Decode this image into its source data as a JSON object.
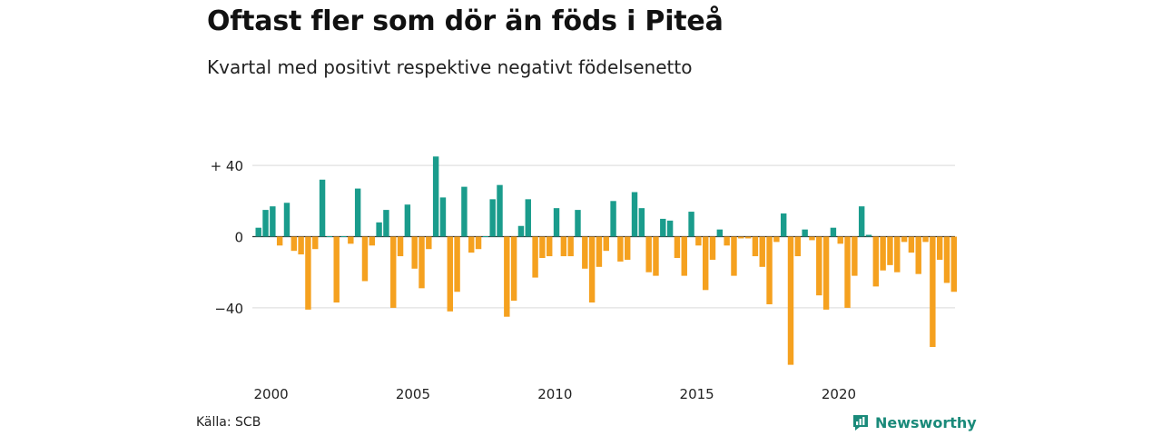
{
  "chart_data": {
    "type": "bar",
    "title": "Oftast fler som dör än föds i Piteå",
    "subtitle": "Kvartal med positivt respektive negativt födelsenetto",
    "xlabel": "",
    "ylabel": "",
    "start_quarter": "2000Q1",
    "x_ticks": [
      "2000",
      "2005",
      "2010",
      "2015",
      "2020"
    ],
    "y_ticks": [
      {
        "value": 40,
        "label": "+ 40"
      },
      {
        "value": 0,
        "label": "0"
      },
      {
        "value": -40,
        "label": "−40"
      }
    ],
    "ylim": [
      -75,
      47
    ],
    "grid": true,
    "colors": {
      "positive": "#1a9c8c",
      "negative": "#f5a11f",
      "grid": "#d9d9d9",
      "zero_line": "#333333"
    },
    "values": [
      5,
      15,
      17,
      -5,
      19,
      -8,
      -10,
      -41,
      -7,
      32,
      0,
      -37,
      0,
      -4,
      27,
      -25,
      -5,
      8,
      15,
      -40,
      -11,
      18,
      -18,
      -29,
      -7,
      45,
      22,
      -42,
      -31,
      28,
      -9,
      -7,
      0,
      21,
      29,
      -45,
      -36,
      6,
      21,
      -23,
      -12,
      -11,
      16,
      -11,
      -11,
      15,
      -18,
      -37,
      -17,
      -8,
      20,
      -14,
      -13,
      25,
      16,
      -20,
      -22,
      10,
      9,
      -12,
      -22,
      14,
      -5,
      -30,
      -13,
      4,
      -5,
      -22,
      -1,
      -1,
      -11,
      -17,
      -38,
      -3,
      13,
      -72,
      -11,
      4,
      -2,
      -33,
      -41,
      5,
      -4,
      -40,
      -22,
      17,
      1,
      -28,
      -19,
      -16,
      -20,
      -3,
      -9,
      -21,
      -3,
      -62,
      -13,
      -26,
      -31
    ]
  },
  "source": "Källa: SCB",
  "brand": {
    "name": "Newsworthy",
    "icon": "newsworthy-logo-icon"
  }
}
